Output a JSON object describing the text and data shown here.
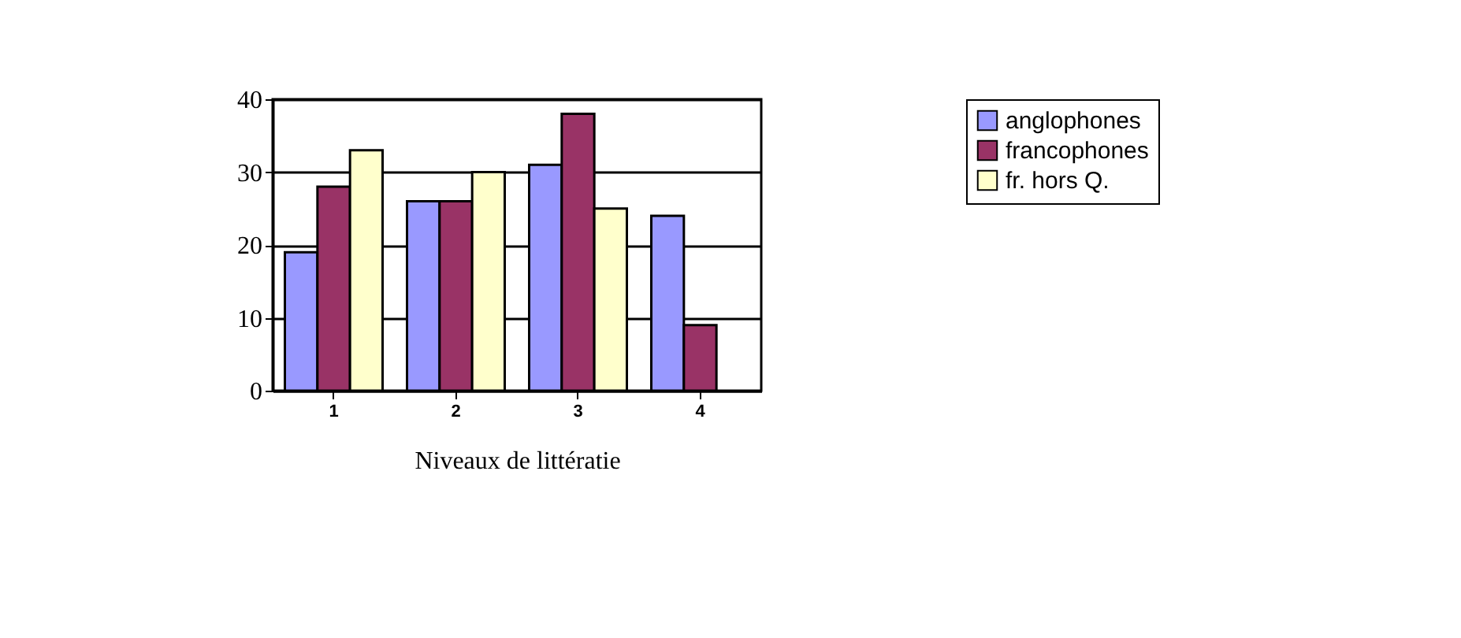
{
  "chart_data": {
    "type": "bar",
    "xlabel": "Niveaux de littératie",
    "categories": [
      "1",
      "2",
      "3",
      "4"
    ],
    "series": [
      {
        "name": "anglophones",
        "color": "#9999ff",
        "values": [
          19,
          26,
          31,
          24
        ]
      },
      {
        "name": "francophones",
        "color": "#993366",
        "values": [
          28,
          26,
          38,
          9
        ]
      },
      {
        "name": "fr. hors Q.",
        "color": "#ffffcc",
        "values": [
          33,
          30,
          25,
          null
        ]
      }
    ],
    "ylim": [
      0,
      40
    ],
    "yticks": [
      0,
      10,
      20,
      30,
      40
    ],
    "grid": "y",
    "legend": "right"
  }
}
